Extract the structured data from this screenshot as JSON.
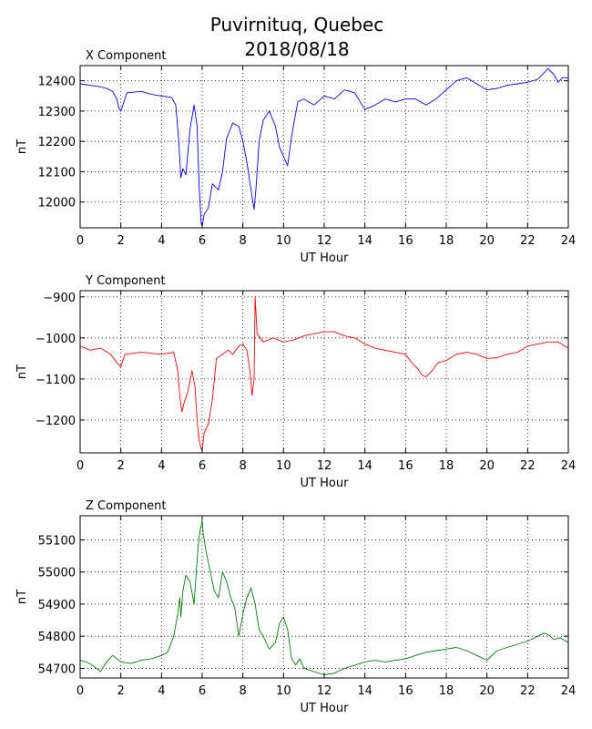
{
  "title_line1": "Puvirnituq, Quebec",
  "title_line2": "2018/08/18",
  "chart_data": [
    {
      "type": "line",
      "title": "X Component",
      "xlabel": "UT Hour",
      "ylabel": "nT",
      "xlim": [
        0,
        24
      ],
      "ylim": [
        11915,
        12450
      ],
      "xticks": [
        0,
        2,
        4,
        6,
        8,
        10,
        12,
        14,
        16,
        18,
        20,
        22,
        24
      ],
      "yticks": [
        12000,
        12100,
        12200,
        12300,
        12400
      ],
      "grid": true,
      "color": "#0000ff",
      "series": [
        {
          "x": [
            0,
            0.5,
            1,
            1.3,
            1.6,
            1.8,
            1.9,
            2,
            2.3,
            3,
            3.5,
            4,
            4.5,
            4.7,
            4.85,
            4.95,
            5.05,
            5.2,
            5.4,
            5.6,
            5.75,
            5.85,
            5.95,
            6,
            6.1,
            6.3,
            6.5,
            6.8,
            7,
            7.2,
            7.5,
            7.8,
            8,
            8.2,
            8.4,
            8.55,
            8.65,
            8.8,
            9,
            9.3,
            9.6,
            9.8,
            10,
            10.2,
            10.4,
            10.7,
            11,
            11.5,
            12,
            12.5,
            13,
            13.5,
            14,
            14.5,
            15,
            15.5,
            16,
            16.5,
            17,
            17.5,
            18,
            18.5,
            19,
            19.5,
            20,
            20.5,
            21,
            21.5,
            22,
            22.5,
            23,
            23.3,
            23.5,
            23.7,
            24
          ],
          "y": [
            12390,
            12385,
            12380,
            12375,
            12365,
            12340,
            12310,
            12300,
            12360,
            12365,
            12355,
            12350,
            12345,
            12320,
            12200,
            12080,
            12110,
            12090,
            12240,
            12320,
            12250,
            12050,
            11930,
            11920,
            11960,
            11980,
            12060,
            12040,
            12100,
            12210,
            12260,
            12250,
            12200,
            12130,
            12040,
            11975,
            12050,
            12200,
            12270,
            12300,
            12250,
            12180,
            12150,
            12120,
            12220,
            12330,
            12340,
            12320,
            12350,
            12340,
            12370,
            12360,
            12305,
            12320,
            12340,
            12330,
            12340,
            12340,
            12320,
            12340,
            12370,
            12400,
            12410,
            12390,
            12370,
            12375,
            12385,
            12390,
            12395,
            12405,
            12440,
            12420,
            12395,
            12410,
            12410
          ]
        }
      ]
    },
    {
      "type": "line",
      "title": "Y Component",
      "xlabel": "UT Hour",
      "ylabel": "nT",
      "xlim": [
        0,
        24
      ],
      "ylim": [
        -1280,
        -885
      ],
      "xticks": [
        0,
        2,
        4,
        6,
        8,
        10,
        12,
        14,
        16,
        18,
        20,
        22,
        24
      ],
      "yticks": [
        -900,
        -1000,
        -1100,
        -1200
      ],
      "grid": true,
      "color": "#ff0000",
      "series": [
        {
          "x": [
            0,
            0.5,
            1,
            1.5,
            1.8,
            2,
            2.2,
            3,
            4,
            4.6,
            4.8,
            4.9,
            5,
            5.1,
            5.3,
            5.5,
            5.65,
            5.75,
            5.85,
            5.95,
            6,
            6.1,
            6.3,
            6.5,
            6.7,
            7,
            7.3,
            7.5,
            7.8,
            8,
            8.2,
            8.35,
            8.45,
            8.55,
            8.6,
            8.7,
            8.85,
            9,
            9.5,
            10,
            10.5,
            11,
            11.5,
            12,
            12.5,
            13,
            13.5,
            14,
            14.5,
            15,
            15.5,
            16,
            16.3,
            16.6,
            16.8,
            17,
            17.3,
            17.6,
            18,
            18.5,
            19,
            19.5,
            20,
            20.5,
            21,
            21.5,
            22,
            22.5,
            23,
            23.5,
            24
          ],
          "y": [
            -1020,
            -1030,
            -1025,
            -1040,
            -1060,
            -1070,
            -1040,
            -1035,
            -1040,
            -1035,
            -1080,
            -1140,
            -1180,
            -1160,
            -1130,
            -1080,
            -1120,
            -1200,
            -1250,
            -1270,
            -1275,
            -1230,
            -1210,
            -1150,
            -1050,
            -1040,
            -1030,
            -1040,
            -1020,
            -1015,
            -1030,
            -1080,
            -1140,
            -1100,
            -900,
            -990,
            -1000,
            -1010,
            -1000,
            -1010,
            -1005,
            -995,
            -990,
            -985,
            -985,
            -995,
            -1000,
            -1015,
            -1025,
            -1030,
            -1035,
            -1040,
            -1060,
            -1075,
            -1090,
            -1095,
            -1080,
            -1060,
            -1055,
            -1040,
            -1035,
            -1040,
            -1050,
            -1048,
            -1040,
            -1035,
            -1020,
            -1015,
            -1010,
            -1010,
            -1025
          ]
        }
      ]
    },
    {
      "type": "line",
      "title": "Z Component",
      "xlabel": "UT Hour",
      "ylabel": "nT",
      "xlim": [
        0,
        24
      ],
      "ylim": [
        54670,
        55175
      ],
      "xticks": [
        0,
        2,
        4,
        6,
        8,
        10,
        12,
        14,
        16,
        18,
        20,
        22,
        24
      ],
      "yticks": [
        54700,
        54800,
        54900,
        55000,
        55100
      ],
      "grid": true,
      "color": "#008000",
      "series": [
        {
          "x": [
            0,
            0.3,
            0.6,
            0.8,
            1,
            1.3,
            1.6,
            2,
            2.5,
            3,
            3.5,
            4,
            4.3,
            4.6,
            4.8,
            4.9,
            4.95,
            5.05,
            5.2,
            5.4,
            5.6,
            5.8,
            5.9,
            6,
            6.05,
            6.2,
            6.4,
            6.6,
            6.8,
            7,
            7.2,
            7.4,
            7.6,
            7.8,
            8,
            8.2,
            8.4,
            8.6,
            8.8,
            9,
            9.3,
            9.6,
            9.8,
            10,
            10.2,
            10.4,
            10.6,
            10.8,
            11,
            11.5,
            12,
            12.5,
            13,
            13.5,
            14,
            14.5,
            15,
            15.5,
            16,
            16.5,
            17,
            17.5,
            18,
            18.5,
            19,
            19.5,
            20,
            20.5,
            21,
            21.5,
            22,
            22.5,
            22.8,
            23,
            23.3,
            23.6,
            24
          ],
          "y": [
            54725,
            54720,
            54710,
            54700,
            54690,
            54720,
            54740,
            54720,
            54715,
            54725,
            54730,
            54740,
            54750,
            54800,
            54870,
            54920,
            54860,
            54940,
            54990,
            54970,
            54900,
            55080,
            55130,
            55160,
            55120,
            55060,
            55000,
            54940,
            54920,
            55000,
            54970,
            54920,
            54890,
            54800,
            54870,
            54920,
            54950,
            54900,
            54820,
            54800,
            54760,
            54780,
            54840,
            54860,
            54820,
            54730,
            54710,
            54730,
            54700,
            54690,
            54680,
            54685,
            54700,
            54710,
            54720,
            54725,
            54720,
            54725,
            54730,
            54740,
            54750,
            54755,
            54760,
            54765,
            54755,
            54740,
            54725,
            54755,
            54765,
            54775,
            54785,
            54800,
            54810,
            54805,
            54790,
            54795,
            54780
          ]
        }
      ]
    }
  ]
}
